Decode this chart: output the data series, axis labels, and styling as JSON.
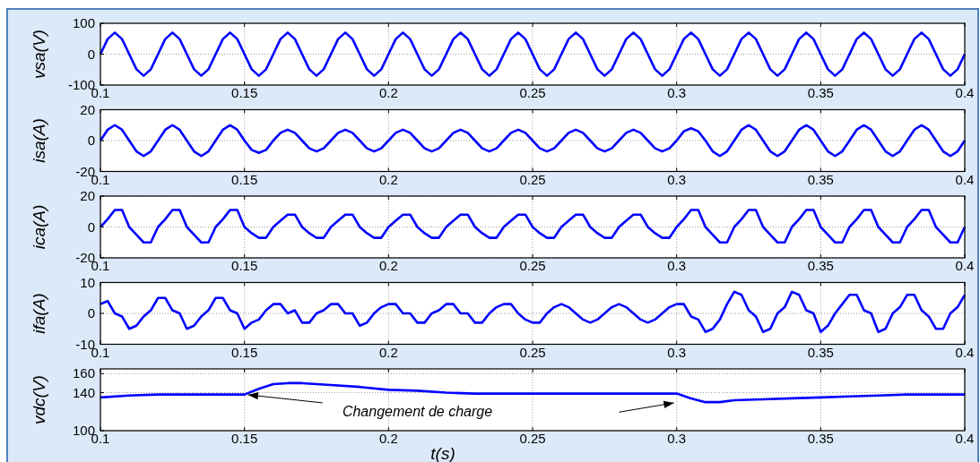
{
  "chart_data": [
    {
      "type": "line",
      "ylabel": "vsa(V)",
      "xlim": [
        0.1,
        0.4
      ],
      "xticks": [
        0.1,
        0.15,
        0.2,
        0.25,
        0.3,
        0.35,
        0.4
      ],
      "ylim": [
        -100,
        100
      ],
      "yticks": [
        -100,
        0,
        100
      ],
      "grid": true,
      "x": [
        0.1,
        0.1025,
        0.105,
        0.1075,
        0.11,
        0.1125,
        0.115,
        0.1175,
        0.12,
        0.1225,
        0.125,
        0.1275,
        0.13,
        0.1325,
        0.135,
        0.1375,
        0.14,
        0.1425,
        0.145,
        0.1475,
        0.15,
        0.1525,
        0.155,
        0.1575,
        0.16,
        0.1625,
        0.165,
        0.1675,
        0.17,
        0.1725,
        0.175,
        0.1775,
        0.18,
        0.1825,
        0.185,
        0.1875,
        0.19,
        0.1925,
        0.195,
        0.1975,
        0.2,
        0.2025,
        0.205,
        0.2075,
        0.21,
        0.2125,
        0.215,
        0.2175,
        0.22,
        0.2225,
        0.225,
        0.2275,
        0.23,
        0.2325,
        0.235,
        0.2375,
        0.24,
        0.2425,
        0.245,
        0.2475,
        0.25,
        0.2525,
        0.255,
        0.2575,
        0.26,
        0.2625,
        0.265,
        0.2675,
        0.27,
        0.2725,
        0.275,
        0.2775,
        0.28,
        0.2825,
        0.285,
        0.2875,
        0.29,
        0.2925,
        0.295,
        0.2975,
        0.3,
        0.3025,
        0.305,
        0.3075,
        0.31,
        0.3125,
        0.315,
        0.3175,
        0.32,
        0.3225,
        0.325,
        0.3275,
        0.33,
        0.3325,
        0.335,
        0.3375,
        0.34,
        0.3425,
        0.345,
        0.3475,
        0.35,
        0.3525,
        0.355,
        0.3575,
        0.36,
        0.3625,
        0.365,
        0.3675,
        0.37,
        0.3725,
        0.375,
        0.3775,
        0.38,
        0.3825,
        0.385,
        0.3875,
        0.39,
        0.3925,
        0.395,
        0.3975,
        0.4
      ],
      "series": [
        {
          "color": "#0000ff",
          "values": [
            0,
            49,
            70,
            49,
            0,
            -49,
            -70,
            -49,
            0,
            49,
            70,
            49,
            0,
            -49,
            -70,
            -49,
            0,
            49,
            70,
            49,
            0,
            -49,
            -70,
            -49,
            0,
            49,
            70,
            49,
            0,
            -49,
            -70,
            -49,
            0,
            49,
            70,
            49,
            0,
            -49,
            -70,
            -49,
            0,
            49,
            70,
            49,
            0,
            -49,
            -70,
            -49,
            0,
            49,
            70,
            49,
            0,
            -49,
            -70,
            -49,
            0,
            49,
            70,
            49,
            0,
            -49,
            -70,
            -49,
            0,
            49,
            70,
            49,
            0,
            -49,
            -70,
            -49,
            0,
            49,
            70,
            49,
            0,
            -49,
            -70,
            -49,
            0,
            49,
            70,
            49,
            0,
            -49,
            -70,
            -49,
            0,
            49,
            70,
            49,
            0,
            -49,
            -70,
            -49,
            0,
            49,
            70,
            49,
            0,
            -49,
            -70,
            -49,
            0,
            49,
            70,
            49,
            0,
            -49,
            -70,
            -49,
            0,
            49,
            70,
            49,
            0,
            -49,
            -70,
            -49,
            0
          ]
        }
      ]
    },
    {
      "type": "line",
      "ylabel": "isa(A)",
      "xlim": [
        0.1,
        0.4
      ],
      "xticks": [
        0.1,
        0.15,
        0.2,
        0.25,
        0.3,
        0.35,
        0.4
      ],
      "ylim": [
        -20,
        20
      ],
      "yticks": [
        -20,
        0,
        20
      ],
      "grid": true,
      "x": [
        0.1,
        0.1025,
        0.105,
        0.1075,
        0.11,
        0.1125,
        0.115,
        0.1175,
        0.12,
        0.1225,
        0.125,
        0.1275,
        0.13,
        0.1325,
        0.135,
        0.1375,
        0.14,
        0.1425,
        0.145,
        0.1475,
        0.15,
        0.1525,
        0.155,
        0.1575,
        0.16,
        0.1625,
        0.165,
        0.1675,
        0.17,
        0.1725,
        0.175,
        0.1775,
        0.18,
        0.1825,
        0.185,
        0.1875,
        0.19,
        0.1925,
        0.195,
        0.1975,
        0.2,
        0.2025,
        0.205,
        0.2075,
        0.21,
        0.2125,
        0.215,
        0.2175,
        0.22,
        0.2225,
        0.225,
        0.2275,
        0.23,
        0.2325,
        0.235,
        0.2375,
        0.24,
        0.2425,
        0.245,
        0.2475,
        0.25,
        0.2525,
        0.255,
        0.2575,
        0.26,
        0.2625,
        0.265,
        0.2675,
        0.27,
        0.2725,
        0.275,
        0.2775,
        0.28,
        0.2825,
        0.285,
        0.2875,
        0.29,
        0.2925,
        0.295,
        0.2975,
        0.3,
        0.3025,
        0.305,
        0.3075,
        0.31,
        0.3125,
        0.315,
        0.3175,
        0.32,
        0.3225,
        0.325,
        0.3275,
        0.33,
        0.3325,
        0.335,
        0.3375,
        0.34,
        0.3425,
        0.345,
        0.3475,
        0.35,
        0.3525,
        0.355,
        0.3575,
        0.36,
        0.3625,
        0.365,
        0.3675,
        0.37,
        0.3725,
        0.375,
        0.3775,
        0.38,
        0.3825,
        0.385,
        0.3875,
        0.39,
        0.3925,
        0.395,
        0.3975,
        0.4
      ],
      "series": [
        {
          "color": "#0000ff",
          "values": [
            0,
            7,
            10,
            7,
            0,
            -7,
            -10,
            -7,
            0,
            7,
            10,
            7,
            0,
            -7,
            -10,
            -7,
            0,
            7,
            10,
            7,
            0,
            -6,
            -8,
            -6,
            0,
            5,
            7,
            5,
            0,
            -5,
            -7,
            -5,
            0,
            5,
            7,
            5,
            0,
            -5,
            -7,
            -5,
            0,
            5,
            7,
            5,
            0,
            -5,
            -7,
            -5,
            0,
            5,
            7,
            5,
            0,
            -5,
            -7,
            -5,
            0,
            5,
            7,
            5,
            0,
            -5,
            -7,
            -5,
            0,
            5,
            7,
            5,
            0,
            -5,
            -7,
            -5,
            0,
            5,
            7,
            5,
            0,
            -5,
            -7,
            -5,
            0,
            6,
            8,
            6,
            0,
            -7,
            -10,
            -7,
            0,
            7,
            10,
            7,
            0,
            -7,
            -10,
            -7,
            0,
            7,
            10,
            7,
            0,
            -7,
            -10,
            -7,
            0,
            7,
            10,
            7,
            0,
            -7,
            -10,
            -7,
            0,
            7,
            10,
            7,
            0,
            -7,
            -10,
            -7,
            0
          ]
        }
      ]
    },
    {
      "type": "line",
      "ylabel": "ica(A)",
      "xlim": [
        0.1,
        0.4
      ],
      "xticks": [
        0.1,
        0.15,
        0.2,
        0.25,
        0.3,
        0.35,
        0.4
      ],
      "ylim": [
        -20,
        20
      ],
      "yticks": [
        -20,
        0,
        20
      ],
      "grid": true,
      "x": [
        0.1,
        0.1025,
        0.105,
        0.1075,
        0.11,
        0.1125,
        0.115,
        0.1175,
        0.12,
        0.1225,
        0.125,
        0.1275,
        0.13,
        0.1325,
        0.135,
        0.1375,
        0.14,
        0.1425,
        0.145,
        0.1475,
        0.15,
        0.1525,
        0.155,
        0.1575,
        0.16,
        0.1625,
        0.165,
        0.1675,
        0.17,
        0.1725,
        0.175,
        0.1775,
        0.18,
        0.1825,
        0.185,
        0.1875,
        0.19,
        0.1925,
        0.195,
        0.1975,
        0.2,
        0.2025,
        0.205,
        0.2075,
        0.21,
        0.2125,
        0.215,
        0.2175,
        0.22,
        0.2225,
        0.225,
        0.2275,
        0.23,
        0.2325,
        0.235,
        0.2375,
        0.24,
        0.2425,
        0.245,
        0.2475,
        0.25,
        0.2525,
        0.255,
        0.2575,
        0.26,
        0.2625,
        0.265,
        0.2675,
        0.27,
        0.2725,
        0.275,
        0.2775,
        0.28,
        0.2825,
        0.285,
        0.2875,
        0.29,
        0.2925,
        0.295,
        0.2975,
        0.3,
        0.3025,
        0.305,
        0.3075,
        0.31,
        0.3125,
        0.315,
        0.3175,
        0.32,
        0.3225,
        0.325,
        0.3275,
        0.33,
        0.3325,
        0.335,
        0.3375,
        0.34,
        0.3425,
        0.345,
        0.3475,
        0.35,
        0.3525,
        0.355,
        0.3575,
        0.36,
        0.3625,
        0.365,
        0.3675,
        0.37,
        0.3725,
        0.375,
        0.3775,
        0.38,
        0.3825,
        0.385,
        0.3875,
        0.39,
        0.3925,
        0.395,
        0.3975,
        0.4
      ],
      "series": [
        {
          "color": "#0000ff",
          "values": [
            0,
            5,
            11,
            11,
            0,
            -5,
            -10,
            -10,
            0,
            5,
            11,
            11,
            0,
            -5,
            -10,
            -10,
            0,
            5,
            11,
            11,
            0,
            -4,
            -7,
            -7,
            0,
            4,
            8,
            8,
            0,
            -4,
            -7,
            -7,
            0,
            4,
            8,
            8,
            0,
            -4,
            -7,
            -7,
            0,
            4,
            8,
            8,
            0,
            -4,
            -7,
            -7,
            0,
            4,
            8,
            8,
            0,
            -4,
            -7,
            -7,
            0,
            4,
            8,
            8,
            0,
            -4,
            -7,
            -7,
            0,
            4,
            8,
            8,
            0,
            -4,
            -7,
            -7,
            0,
            4,
            8,
            8,
            0,
            -4,
            -7,
            -7,
            0,
            5,
            11,
            11,
            0,
            -5,
            -10,
            -10,
            0,
            5,
            11,
            11,
            0,
            -5,
            -10,
            -10,
            0,
            5,
            11,
            11,
            0,
            -5,
            -10,
            -10,
            0,
            5,
            11,
            11,
            0,
            -5,
            -10,
            -10,
            0,
            5,
            11,
            11,
            0,
            -5,
            -10,
            -10,
            0
          ]
        }
      ]
    },
    {
      "type": "line",
      "ylabel": "ifa(A)",
      "xlim": [
        0.1,
        0.4
      ],
      "xticks": [
        0.1,
        0.15,
        0.2,
        0.25,
        0.3,
        0.35,
        0.4
      ],
      "ylim": [
        -10,
        10
      ],
      "yticks": [
        -10,
        0,
        10
      ],
      "grid": true,
      "x": [
        0.1,
        0.1025,
        0.105,
        0.1075,
        0.11,
        0.1125,
        0.115,
        0.1175,
        0.12,
        0.1225,
        0.125,
        0.1275,
        0.13,
        0.1325,
        0.135,
        0.1375,
        0.14,
        0.1425,
        0.145,
        0.1475,
        0.15,
        0.1525,
        0.155,
        0.1575,
        0.16,
        0.1625,
        0.165,
        0.1675,
        0.17,
        0.1725,
        0.175,
        0.1775,
        0.18,
        0.1825,
        0.185,
        0.1875,
        0.19,
        0.1925,
        0.195,
        0.1975,
        0.2,
        0.2025,
        0.205,
        0.2075,
        0.21,
        0.2125,
        0.215,
        0.2175,
        0.22,
        0.2225,
        0.225,
        0.2275,
        0.23,
        0.2325,
        0.235,
        0.2375,
        0.24,
        0.2425,
        0.245,
        0.2475,
        0.25,
        0.2525,
        0.255,
        0.2575,
        0.26,
        0.2625,
        0.265,
        0.2675,
        0.27,
        0.2725,
        0.275,
        0.2775,
        0.28,
        0.2825,
        0.285,
        0.2875,
        0.29,
        0.2925,
        0.295,
        0.2975,
        0.3,
        0.3025,
        0.305,
        0.3075,
        0.31,
        0.3125,
        0.315,
        0.3175,
        0.32,
        0.3225,
        0.325,
        0.3275,
        0.33,
        0.3325,
        0.335,
        0.3375,
        0.34,
        0.3425,
        0.345,
        0.3475,
        0.35,
        0.3525,
        0.355,
        0.3575,
        0.36,
        0.3625,
        0.365,
        0.3675,
        0.37,
        0.3725,
        0.375,
        0.3775,
        0.38,
        0.3825,
        0.385,
        0.3875,
        0.39,
        0.3925,
        0.395,
        0.3975,
        0.4
      ],
      "series": [
        {
          "color": "#0000ff",
          "values": [
            3,
            4,
            0,
            -1,
            -5,
            -4,
            -1,
            1,
            5,
            5,
            1,
            0,
            -5,
            -4,
            -1,
            1,
            5,
            5,
            1,
            0,
            -5,
            -3,
            -2,
            1,
            3,
            3,
            0,
            1,
            -3,
            -3,
            0,
            1,
            3,
            3,
            0,
            0,
            -4,
            -3,
            0,
            2,
            3,
            3,
            0,
            0,
            -3,
            -3,
            0,
            1,
            3,
            3,
            0,
            0,
            -3,
            -3,
            0,
            2,
            3,
            3,
            0,
            -2,
            -3,
            -3,
            0,
            2,
            3,
            2,
            0,
            -2,
            -3,
            -2,
            0,
            2,
            3,
            2,
            0,
            -2,
            -3,
            -2,
            0,
            2,
            3,
            3,
            -1,
            -2,
            -6,
            -5,
            -2,
            3,
            7,
            6,
            1,
            -1,
            -6,
            -5,
            0,
            2,
            7,
            6,
            1,
            0,
            -6,
            -4,
            0,
            3,
            6,
            6,
            1,
            0,
            -6,
            -5,
            0,
            2,
            6,
            6,
            1,
            -1,
            -5,
            -5,
            0,
            2,
            6
          ]
        }
      ]
    },
    {
      "type": "line",
      "ylabel": "vdc(V)",
      "xlabel": "t(s)",
      "xlim": [
        0.1,
        0.4
      ],
      "xticks": [
        0.1,
        0.15,
        0.2,
        0.25,
        0.3,
        0.35,
        0.4
      ],
      "ylim": [
        100,
        165
      ],
      "yticks": [
        100,
        140,
        160
      ],
      "grid": true,
      "annotations": [
        "Changement de charge"
      ],
      "x": [
        0.1,
        0.11,
        0.12,
        0.13,
        0.14,
        0.15,
        0.155,
        0.16,
        0.165,
        0.17,
        0.18,
        0.19,
        0.2,
        0.21,
        0.22,
        0.23,
        0.24,
        0.25,
        0.26,
        0.27,
        0.28,
        0.29,
        0.3,
        0.305,
        0.31,
        0.315,
        0.32,
        0.33,
        0.34,
        0.35,
        0.36,
        0.37,
        0.38,
        0.39,
        0.4
      ],
      "series": [
        {
          "color": "#0000ff",
          "values": [
            135,
            137,
            138,
            138,
            138,
            138,
            144,
            149,
            150,
            150,
            148,
            146,
            143,
            142,
            140,
            139,
            139,
            139,
            139,
            139,
            139,
            139,
            139,
            134,
            130,
            130,
            132,
            133,
            134,
            135,
            136,
            137,
            138,
            138,
            138
          ]
        }
      ]
    }
  ]
}
